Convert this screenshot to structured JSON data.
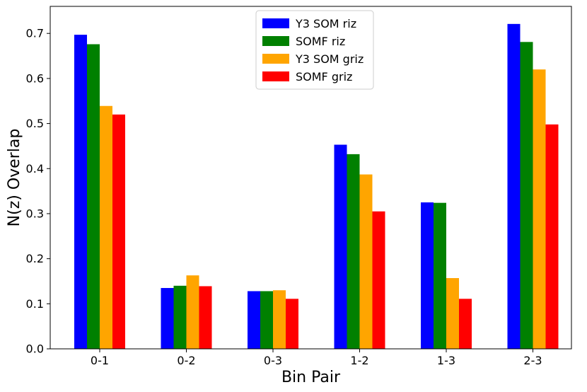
{
  "chart_data": {
    "type": "bar",
    "title": "",
    "xlabel": "Bin Pair",
    "ylabel": "N(z) Overlap",
    "categories": [
      "0-1",
      "0-2",
      "0-3",
      "1-2",
      "1-3",
      "2-3"
    ],
    "ylim": [
      0,
      0.76
    ],
    "yticks": [
      0.0,
      0.1,
      0.2,
      0.3,
      0.4,
      0.5,
      0.6,
      0.7
    ],
    "ytick_labels": [
      "0.0",
      "0.1",
      "0.2",
      "0.3",
      "0.4",
      "0.5",
      "0.6",
      "0.7"
    ],
    "grid": false,
    "legend_position": "top-center",
    "series": [
      {
        "name": "Y3 SOM riz",
        "color": "#0000ff",
        "values": [
          0.697,
          0.135,
          0.128,
          0.453,
          0.325,
          0.721
        ]
      },
      {
        "name": "SOMF riz",
        "color": "#008000",
        "values": [
          0.676,
          0.14,
          0.128,
          0.432,
          0.324,
          0.681
        ]
      },
      {
        "name": "Y3 SOM griz",
        "color": "#ffa500",
        "values": [
          0.539,
          0.163,
          0.13,
          0.387,
          0.157,
          0.62
        ]
      },
      {
        "name": "SOMF griz",
        "color": "#ff0000",
        "values": [
          0.52,
          0.139,
          0.111,
          0.305,
          0.111,
          0.498
        ]
      }
    ]
  }
}
